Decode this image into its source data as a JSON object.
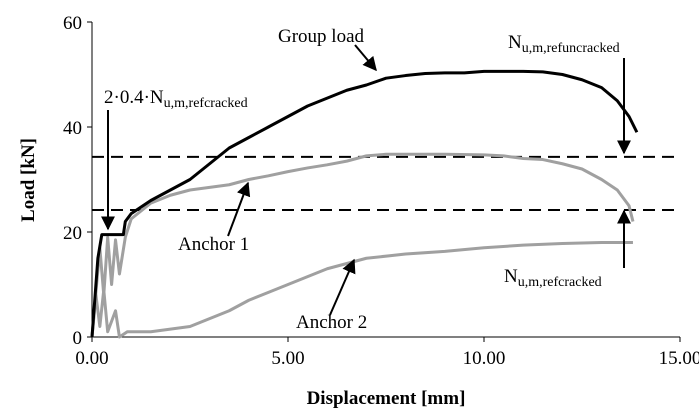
{
  "chart_data": {
    "type": "line",
    "xlabel": "Displacement [mm]",
    "ylabel": "Load [kN]",
    "xlim": [
      0,
      15
    ],
    "ylim": [
      0,
      60
    ],
    "xticks": [
      {
        "value": 0,
        "label": "0.00"
      },
      {
        "value": 5,
        "label": "5.00"
      },
      {
        "value": 10,
        "label": "10.00"
      },
      {
        "value": 15,
        "label": "15.00"
      }
    ],
    "yticks": [
      0,
      20,
      40,
      60
    ],
    "series": [
      {
        "name": "Group load",
        "color": "#000000",
        "x": [
          0,
          0.05,
          0.15,
          0.25,
          0.5,
          0.8,
          0.85,
          1.0,
          1.5,
          2,
          2.5,
          3,
          3.5,
          4,
          4.5,
          5,
          5.5,
          6,
          6.5,
          7,
          7.5,
          8,
          8.5,
          9,
          9.5,
          10,
          10.5,
          11,
          11.5,
          12,
          12.5,
          13,
          13.4,
          13.7,
          13.9
        ],
        "values": [
          0,
          5,
          15,
          19.5,
          19.5,
          19.5,
          22,
          23.5,
          26,
          28,
          30,
          33,
          36,
          38,
          40,
          42,
          44,
          45.5,
          47,
          48,
          49.3,
          49.8,
          50.2,
          50.3,
          50.3,
          50.6,
          50.6,
          50.6,
          50.5,
          50,
          49,
          47.5,
          45,
          42,
          39
        ]
      },
      {
        "name": "Anchor 1",
        "color": "#a0a0a0",
        "x": [
          0,
          0.2,
          0.3,
          0.4,
          0.5,
          0.6,
          0.7,
          0.85,
          1.0,
          1.5,
          2,
          2.5,
          3,
          3.5,
          4,
          4.5,
          5,
          5.5,
          6,
          6.5,
          7,
          7.5,
          8,
          9,
          10,
          10.5,
          11,
          11.5,
          12,
          12.5,
          13,
          13.4,
          13.7,
          13.8
        ],
        "values": [
          0,
          17,
          8,
          19,
          10,
          18.5,
          12,
          19,
          22.5,
          25.5,
          27,
          28,
          28.5,
          29,
          30,
          30.7,
          31.5,
          32.2,
          32.8,
          33.5,
          34.5,
          34.8,
          34.8,
          34.8,
          34.7,
          34.5,
          34,
          33.8,
          33,
          32,
          30,
          28,
          25,
          22
        ]
      },
      {
        "name": "Anchor 2",
        "color": "#a0a0a0",
        "x": [
          0,
          0.1,
          0.2,
          0.3,
          0.4,
          0.6,
          0.7,
          0.9,
          1.5,
          2,
          2.5,
          3,
          3.5,
          4,
          4.5,
          5,
          5.5,
          6,
          6.5,
          7,
          8,
          9,
          10,
          11,
          12,
          13,
          13.8
        ],
        "values": [
          0,
          8,
          2,
          9,
          1,
          5,
          0,
          1,
          1,
          1.5,
          2,
          3.5,
          5,
          7,
          8.5,
          10,
          11.5,
          13,
          14,
          15,
          15.8,
          16.3,
          17,
          17.5,
          17.8,
          18,
          18
        ]
      }
    ],
    "reference_lines": [
      {
        "value": 34.3,
        "label": "N",
        "sub": "u,m,refuncracked"
      },
      {
        "value": 24.2,
        "label": "N",
        "sub": "u,m,refcracked"
      }
    ],
    "annotation": {
      "label": "2·0.4·N",
      "sub": "u,m,refcracked"
    }
  }
}
